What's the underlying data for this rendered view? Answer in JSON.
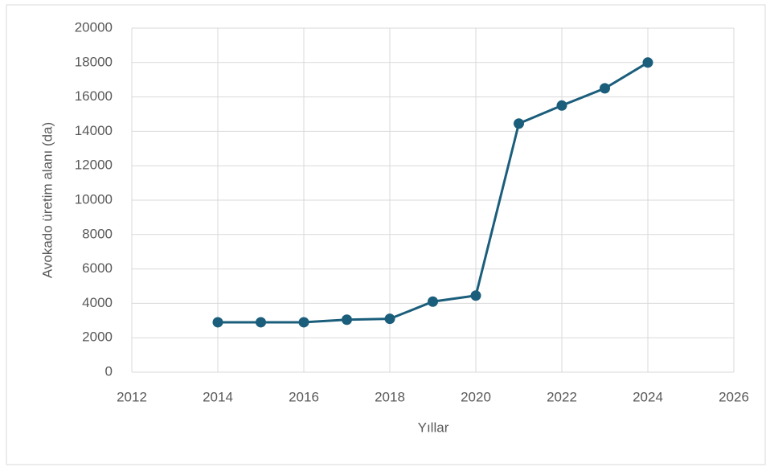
{
  "chart_data": {
    "type": "line",
    "xlabel": "Yıllar",
    "ylabel": "Avokado üretim alanı (da)",
    "x": [
      2014,
      2015,
      2016,
      2017,
      2018,
      2019,
      2020,
      2021,
      2022,
      2023,
      2024
    ],
    "series": [
      {
        "name": "Avokado üretim alanı",
        "color": "#1b5e7b",
        "values": [
          2900,
          2900,
          2900,
          3050,
          3100,
          4100,
          4450,
          14450,
          15500,
          16500,
          18000
        ]
      }
    ],
    "xlim": [
      2012,
      2026
    ],
    "xticks": [
      2012,
      2014,
      2016,
      2018,
      2020,
      2022,
      2024,
      2026
    ],
    "ylim": [
      0,
      20000
    ],
    "yticks": [
      0,
      2000,
      4000,
      6000,
      8000,
      10000,
      12000,
      14000,
      16000,
      18000,
      20000
    ],
    "grid": true
  }
}
